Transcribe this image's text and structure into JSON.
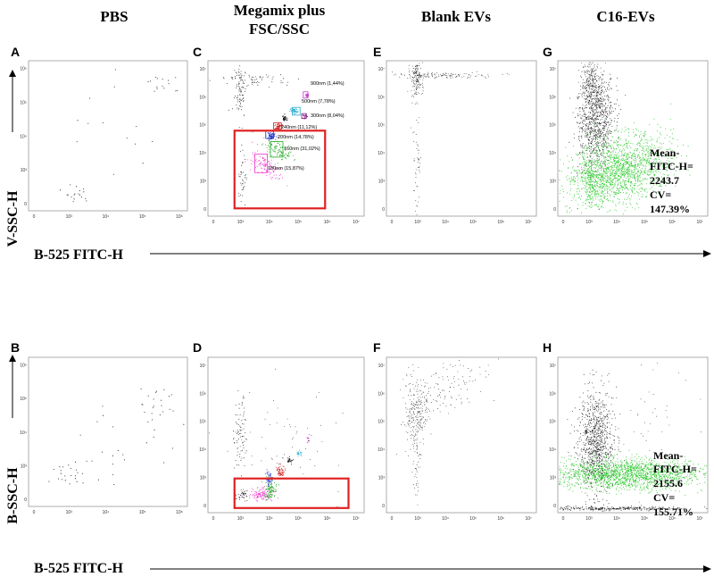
{
  "columns": [
    "PBS",
    "Megamix plus",
    "FSC/SSC",
    "Blank EVs",
    "C16-EVs"
  ],
  "axes": {
    "top_y_label": "V-SSC-H",
    "top_x_label": "B-525 FITC-H",
    "bottom_y_label": "B-SSC-H",
    "bottom_x_label": "B-525 FITC-H"
  },
  "panels": {
    "A": "A",
    "B": "B",
    "C": "C",
    "D": "D",
    "E": "E",
    "F": "F",
    "G": "G",
    "H": "H"
  },
  "ticks_short": [
    "0",
    "10³",
    "10⁴",
    "10⁵",
    "10⁶"
  ],
  "ticks_long": [
    "0",
    "10³",
    "10⁴",
    "10⁵",
    "10⁶",
    "10⁷"
  ],
  "gates": [
    {
      "label": "900nm (1,44%)",
      "color": "#cc33cc"
    },
    {
      "label": "500nm (7,78%)",
      "color": "#22aacc"
    },
    {
      "label": "300nm (8,04%)",
      "color": "#882288"
    },
    {
      "label": "240nm (11,12%)",
      "color": "#cc2222"
    },
    {
      "label": "200nm (14,78%)",
      "color": "#2233cc"
    },
    {
      "label": "160nm (31,02%)",
      "color": "#22aa22"
    },
    {
      "label": "100nm (15,87%)",
      "color": "#ee33cc"
    }
  ],
  "stats": {
    "G": {
      "line1": "Mean-",
      "line2": "FITC-H=",
      "line3": "2243.7",
      "line4": "CV=",
      "line5": "147.39%"
    },
    "H": {
      "line1": "Mean-",
      "line2": "FITC-H=",
      "line3": "2155.6",
      "line4": "CV=",
      "line5": "155.71%"
    }
  },
  "colors": {
    "gate_box": "#e02020",
    "green_population": "#33cc33",
    "dots": "#111111"
  }
}
